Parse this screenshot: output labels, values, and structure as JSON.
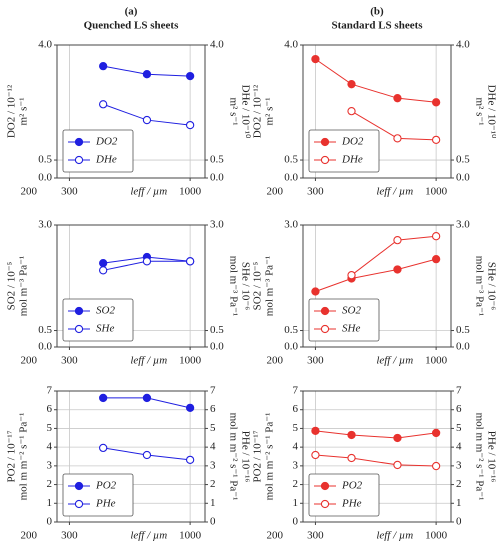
{
  "chart_data": [
    {
      "type": "line",
      "label": "(a)",
      "title": "Quenched LS sheets",
      "xlabel": "leff / µm",
      "xscale": "log",
      "xlim": [
        265,
        1160
      ],
      "xticks": [
        200,
        300,
        1000
      ],
      "ylabel": [
        "DO2 / 10⁻¹²",
        "m² s⁻¹"
      ],
      "yscale": "log",
      "ylim": [
        0,
        4.0
      ],
      "yticks": [
        {
          "value": 0,
          "label": "0.0"
        },
        0.5,
        {
          "value": 4,
          "label": "4.0"
        }
      ],
      "y2label": [
        "DHe / 10⁻¹⁰",
        "m² s⁻¹"
      ],
      "y2lim": [
        0,
        4.0
      ],
      "y2ticks": [
        {
          "value": 0,
          "label": "0.0"
        },
        0.5,
        {
          "value": 4,
          "label": "4.0"
        }
      ],
      "grid": true,
      "legend": "lower left",
      "x": [
        420,
        650,
        1000
      ],
      "series": [
        {
          "name": "DO2",
          "color": "#1f1fe0",
          "marker": "filled",
          "values": [
            2.73,
            2.36,
            2.28
          ]
        },
        {
          "name": "DHe",
          "color": "#1f1fe0",
          "marker": "open",
          "axis": "y2",
          "values": [
            1.37,
            1.03,
            0.94
          ]
        }
      ]
    },
    {
      "type": "line",
      "label": "(b)",
      "title": "Standard LS sheets",
      "xlabel": "leff / µm",
      "xscale": "log",
      "xlim": [
        265,
        1160
      ],
      "xticks": [
        200,
        300,
        1000
      ],
      "ylabel": [
        "DO2 / 10⁻¹²",
        "m² s⁻¹"
      ],
      "yscale": "log",
      "ylim": [
        0,
        4.0
      ],
      "yticks": [
        {
          "value": 0,
          "label": "0.0"
        },
        0.5,
        {
          "value": 4,
          "label": "4.0"
        }
      ],
      "y2label": [
        "DHe / 10⁻¹⁰",
        "m² s⁻¹"
      ],
      "y2lim": [
        0,
        4.0
      ],
      "y2ticks": [
        {
          "value": 0,
          "label": "0.0"
        },
        0.5,
        {
          "value": 4,
          "label": "4.0"
        }
      ],
      "grid": true,
      "legend": "lower left",
      "x": [
        300,
        430,
        680,
        1000
      ],
      "series": [
        {
          "name": "DO2",
          "color": "#e8322e",
          "marker": "filled",
          "values": [
            3.1,
            1.97,
            1.53,
            1.42
          ]
        },
        {
          "name": "DHe",
          "color": "#e8322e",
          "marker": "open",
          "axis": "y2",
          "values": [
            null,
            1.21,
            0.74,
            0.72
          ]
        }
      ]
    },
    {
      "type": "line",
      "xlabel": "leff / µm",
      "xscale": "log",
      "xlim": [
        265,
        1160
      ],
      "xticks": [
        200,
        300,
        1000
      ],
      "ylabel": [
        "SO2 / 10⁻⁵",
        "mol m⁻³ Pa⁻¹"
      ],
      "yscale": "log",
      "ylim": [
        0,
        3.0
      ],
      "yticks": [
        {
          "value": 0,
          "label": "0.0"
        },
        0.5,
        {
          "value": 3,
          "label": "3.0"
        }
      ],
      "y2label": [
        "SHe / 10⁻⁶",
        "mol m⁻³ Pa⁻¹"
      ],
      "y2lim": [
        0,
        3.0
      ],
      "y2ticks": [
        {
          "value": 0,
          "label": "0.0"
        },
        0.5,
        {
          "value": 3,
          "label": "3.0"
        }
      ],
      "grid": true,
      "legend": "lower left",
      "x": [
        420,
        650,
        1000
      ],
      "series": [
        {
          "name": "SO2",
          "color": "#1f1fe0",
          "marker": "filled",
          "values": [
            1.57,
            1.74,
            1.62
          ]
        },
        {
          "name": "SHe",
          "color": "#1f1fe0",
          "marker": "open",
          "axis": "y2",
          "values": [
            1.39,
            1.62,
            1.62
          ]
        }
      ]
    },
    {
      "type": "line",
      "xlabel": "leff / µm",
      "xscale": "log",
      "xlim": [
        265,
        1160
      ],
      "xticks": [
        200,
        300,
        1000
      ],
      "ylabel": [
        "SO2 / 10⁻⁵",
        "mol m⁻³ Pa⁻¹"
      ],
      "yscale": "log",
      "ylim": [
        0,
        3.0
      ],
      "yticks": [
        {
          "value": 0,
          "label": "0.0"
        },
        0.5,
        {
          "value": 3,
          "label": "3.0"
        }
      ],
      "y2label": [
        "SHe / 10⁻⁶",
        "mol m⁻³ Pa⁻¹"
      ],
      "y2lim": [
        0,
        3.0
      ],
      "y2ticks": [
        {
          "value": 0,
          "label": "0.0"
        },
        0.5,
        {
          "value": 3,
          "label": "3.0"
        }
      ],
      "grid": true,
      "legend": "lower left",
      "x": [
        300,
        430,
        680,
        1000
      ],
      "series": [
        {
          "name": "SO2",
          "color": "#e8322e",
          "marker": "filled",
          "values": [
            0.97,
            1.21,
            1.41,
            1.68
          ]
        },
        {
          "name": "SHe",
          "color": "#e8322e",
          "marker": "open",
          "axis": "y2",
          "values": [
            null,
            1.28,
            2.32,
            2.48
          ]
        }
      ]
    },
    {
      "type": "line",
      "xlabel": "leff / µm",
      "xscale": "log",
      "xlim": [
        265,
        1160
      ],
      "xticks": [
        200,
        300,
        1000
      ],
      "ylabel": [
        "PO2 / 10⁻¹⁷",
        "mol m m⁻² s⁻¹ Pa⁻¹"
      ],
      "yscale": "linear",
      "ylim": [
        0,
        7
      ],
      "yticks": [
        0,
        1,
        2,
        3,
        4,
        5,
        6,
        7
      ],
      "y2label": [
        "PHe / 10⁻¹⁶",
        "mol m m⁻² s⁻¹ Pa⁻¹"
      ],
      "y2lim": [
        0,
        7
      ],
      "y2ticks": [
        0,
        1,
        2,
        3,
        4,
        5,
        6,
        7
      ],
      "grid": true,
      "legend": "lower left",
      "x": [
        420,
        650,
        1000
      ],
      "series": [
        {
          "name": "PO2",
          "color": "#1f1fe0",
          "marker": "filled",
          "values": [
            6.63,
            6.63,
            6.1
          ]
        },
        {
          "name": "PHe",
          "color": "#1f1fe0",
          "marker": "open",
          "axis": "y2",
          "values": [
            3.96,
            3.58,
            3.32
          ]
        }
      ]
    },
    {
      "type": "line",
      "xlabel": "leff / µm",
      "xscale": "log",
      "xlim": [
        265,
        1160
      ],
      "xticks": [
        200,
        300,
        1000
      ],
      "ylabel": [
        "PO2 / 10⁻¹⁷",
        "mol m m⁻² s⁻¹ Pa⁻¹"
      ],
      "yscale": "linear",
      "ylim": [
        0,
        7
      ],
      "yticks": [
        0,
        1,
        2,
        3,
        4,
        5,
        6,
        7
      ],
      "y2label": [
        "PHe / 10⁻¹⁶",
        "mol m m⁻² s⁻¹ Pa⁻¹"
      ],
      "y2lim": [
        0,
        7
      ],
      "y2ticks": [
        0,
        1,
        2,
        3,
        4,
        5,
        6,
        7
      ],
      "grid": true,
      "legend": "lower left",
      "x": [
        300,
        430,
        680,
        1000
      ],
      "series": [
        {
          "name": "PO2",
          "color": "#e8322e",
          "marker": "filled",
          "values": [
            4.87,
            4.65,
            4.49,
            4.76
          ]
        },
        {
          "name": "PHe",
          "color": "#e8322e",
          "marker": "open",
          "axis": "y2",
          "values": [
            3.58,
            3.42,
            3.05,
            2.99
          ]
        }
      ]
    }
  ]
}
